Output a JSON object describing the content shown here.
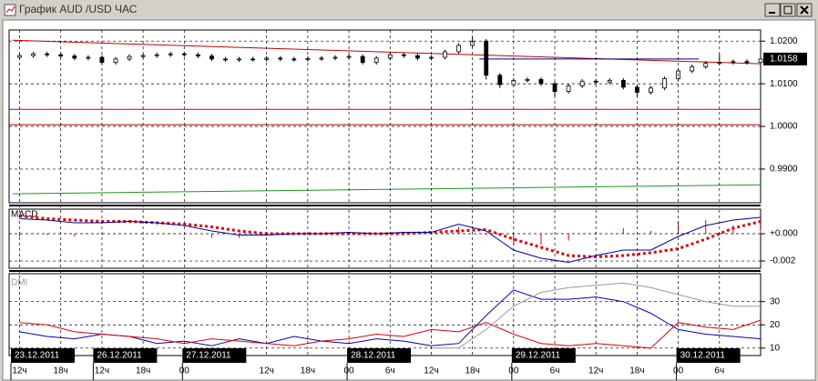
{
  "window": {
    "title": "График AUD /USD ЧАС"
  },
  "chart_data": [
    {
      "type": "candlestick",
      "xlim": [
        0,
        109
      ],
      "ylim": [
        0.9821,
        1.0226
      ],
      "yticks": [
        {
          "value": 1.02,
          "label": "1.0200"
        },
        {
          "value": 1.01,
          "label": "1.0100"
        },
        {
          "value": 1,
          "label": "1.0000"
        },
        {
          "value": 0.99,
          "label": "0.9900"
        }
      ],
      "grid": true,
      "last_value": 1.0158,
      "x": [
        1,
        3,
        5,
        7,
        9,
        11,
        13,
        15,
        17,
        19,
        21,
        23,
        25,
        27,
        29,
        31,
        33,
        35,
        37,
        39,
        41,
        43,
        45,
        47,
        49,
        51,
        53,
        55,
        57,
        59,
        61,
        63,
        65,
        67,
        69,
        71,
        73,
        75,
        77,
        79,
        81,
        83,
        85,
        87,
        89,
        91,
        93,
        95,
        97,
        99,
        101,
        103,
        105,
        107,
        109
      ],
      "open": [
        1.0162,
        1.0166,
        1.017,
        1.0168,
        1.0165,
        1.016,
        1.0162,
        1.015,
        1.0158,
        1.0164,
        1.0166,
        1.0168,
        1.017,
        1.0168,
        1.0165,
        1.0158,
        1.0156,
        1.0158,
        1.0157,
        1.016,
        1.0158,
        1.0157,
        1.0159,
        1.016,
        1.0162,
        1.0164,
        1.015,
        1.016,
        1.0168,
        1.0166,
        1.016,
        1.0162,
        1.0175,
        1.019,
        1.02,
        1.012,
        1.0098,
        1.0108,
        1.011,
        1.01,
        1.0082,
        1.0095,
        1.0106,
        1.0104,
        1.0108,
        1.0092,
        1.008,
        1.009,
        1.0112,
        1.013,
        1.014,
        1.0148,
        1.015,
        1.0152,
        1.015
      ],
      "high": [
        1.0171,
        1.0175,
        1.0175,
        1.0173,
        1.017,
        1.0167,
        1.0167,
        1.0163,
        1.0169,
        1.0171,
        1.0173,
        1.0175,
        1.0175,
        1.0173,
        1.017,
        1.0163,
        1.0163,
        1.0163,
        1.0165,
        1.0165,
        1.0163,
        1.0164,
        1.0165,
        1.0167,
        1.0169,
        1.0169,
        1.0165,
        1.0173,
        1.0173,
        1.0171,
        1.0167,
        1.018,
        1.0195,
        1.021,
        1.0205,
        1.0125,
        1.0113,
        1.0115,
        1.0115,
        1.0105,
        1.01,
        1.0111,
        1.0111,
        1.0113,
        1.0113,
        1.0097,
        1.0095,
        1.0117,
        1.0135,
        1.0145,
        1.0153,
        1.017,
        1.0157,
        1.0157,
        1.0163
      ],
      "low": [
        1.0157,
        1.0161,
        1.0163,
        1.016,
        1.0155,
        1.0155,
        1.0145,
        1.0145,
        1.0153,
        1.0159,
        1.0161,
        1.0163,
        1.0163,
        1.016,
        1.0153,
        1.0151,
        1.0151,
        1.0152,
        1.0152,
        1.0153,
        1.0152,
        1.0152,
        1.0154,
        1.0155,
        1.0157,
        1.0145,
        1.0145,
        1.0155,
        1.0161,
        1.0155,
        1.0155,
        1.0157,
        1.017,
        1.0185,
        1.011,
        1.009,
        1.0093,
        1.0103,
        1.0095,
        1.007,
        1.0077,
        1.009,
        1.0099,
        1.0099,
        1.0087,
        1.007,
        1.0075,
        1.0085,
        1.0107,
        1.0125,
        1.0135,
        1.0143,
        1.0145,
        1.0145,
        1.0145
      ],
      "close": [
        1.0166,
        1.017,
        1.0168,
        1.0165,
        1.016,
        1.0162,
        1.015,
        1.0158,
        1.0164,
        1.0166,
        1.0168,
        1.017,
        1.0168,
        1.0165,
        1.0158,
        1.0156,
        1.0158,
        1.0157,
        1.016,
        1.0158,
        1.0157,
        1.0159,
        1.016,
        1.0162,
        1.0164,
        1.015,
        1.016,
        1.0168,
        1.0166,
        1.016,
        1.0162,
        1.0175,
        1.019,
        1.02,
        1.012,
        1.0098,
        1.0108,
        1.011,
        1.01,
        1.0082,
        1.0095,
        1.0106,
        1.0104,
        1.0108,
        1.0092,
        1.008,
        1.009,
        1.0112,
        1.013,
        1.014,
        1.0148,
        1.015,
        1.0152,
        1.015,
        1.0158
      ],
      "levels": [
        {
          "value": 1.004,
          "color": "#c00000"
        },
        {
          "value": 1.0004,
          "color": "#c00000"
        }
      ],
      "trendlines": [
        {
          "x": [
            0,
            109
          ],
          "values": [
            1.0202,
            1.0147
          ],
          "color": "#c00000"
        },
        {
          "x": [
            0,
            109
          ],
          "values": [
            0.9842,
            0.9863
          ],
          "color": "#1a9a1a"
        },
        {
          "x": [
            68,
            100
          ],
          "values": [
            1.0158,
            1.0158
          ],
          "color": "#000080"
        }
      ]
    },
    {
      "type": "line",
      "title": "MACD",
      "xlim": [
        0,
        109
      ],
      "ylim": [
        -0.00253,
        0.0018
      ],
      "yticks": [
        {
          "value": 0,
          "label": "+0.000"
        },
        {
          "value": -0.002,
          "label": "-0.002"
        }
      ],
      "grid": true,
      "x": [
        1,
        5,
        9,
        13,
        17,
        21,
        25,
        29,
        33,
        37,
        41,
        45,
        49,
        53,
        57,
        61,
        65,
        69,
        73,
        77,
        81,
        85,
        89,
        93,
        97,
        101,
        105,
        109
      ],
      "series": [
        {
          "style": "bars",
          "color": "#e00000",
          "values": [
            -0.0002,
            -0.0001,
            -0.0002,
            -0.0001,
            0,
            0,
            -0.0001,
            -0.0003,
            -0.0003,
            -0.0001,
            0,
            0,
            0.0001,
            0,
            0.0001,
            0,
            0.0005,
            -0.0001,
            -0.0008,
            -0.0008,
            -0.0005,
            0.0001,
            0.0004,
            0.0002,
            0.0009,
            0.001,
            0.0006,
            0.0003
          ]
        },
        {
          "style": "dotted",
          "color": "#e00000",
          "values": [
            0.0013,
            0.0011,
            0.001,
            0.0009,
            0.0009,
            0.0008,
            0.0007,
            0.0005,
            0.0002,
            0,
            0,
            0,
            0,
            0,
            0,
            0.0001,
            0.0002,
            0.0003,
            -0.0004,
            -0.001,
            -0.0016,
            -0.0017,
            -0.0016,
            -0.0014,
            -0.0011,
            -0.0004,
            0.0004,
            0.0009
          ]
        },
        {
          "style": "line",
          "color": "#0000a0",
          "values": [
            0.0011,
            0.001,
            0.0008,
            0.0008,
            0.0009,
            0.0008,
            0.0006,
            0.0002,
            -0.0001,
            -0.0001,
            0,
            0,
            0.0001,
            0,
            0.0001,
            0.0001,
            0.0007,
            0.0002,
            -0.0012,
            -0.0018,
            -0.0021,
            -0.0016,
            -0.0012,
            -0.0012,
            -0.0002,
            0.0006,
            0.001,
            0.0012
          ]
        }
      ]
    },
    {
      "type": "line",
      "title": "DMI",
      "xlim": [
        0,
        109
      ],
      "ylim": [
        6.8,
        42
      ],
      "yticks": [
        30,
        20,
        10
      ],
      "grid": true,
      "x": [
        1,
        5,
        9,
        13,
        17,
        21,
        25,
        29,
        33,
        37,
        41,
        45,
        49,
        53,
        57,
        61,
        65,
        69,
        73,
        77,
        81,
        85,
        89,
        93,
        97,
        101,
        105,
        109
      ],
      "series": [
        {
          "style": "line",
          "color": "#0000c0",
          "values": [
            17,
            15,
            14,
            16,
            15,
            12,
            13,
            11,
            14,
            12,
            15,
            13,
            12,
            14,
            13,
            11,
            12,
            24,
            35,
            31,
            31,
            32,
            30,
            25,
            18,
            16,
            15,
            14
          ]
        },
        {
          "style": "line",
          "color": "#e00000",
          "values": [
            21,
            20,
            17,
            16,
            15,
            14,
            12,
            14,
            13,
            12,
            11,
            13,
            14,
            16,
            15,
            18,
            17,
            21,
            16,
            12,
            11,
            12,
            11,
            10,
            21,
            19,
            18,
            22
          ]
        },
        {
          "style": "line",
          "color": "#999999",
          "values": [
            null,
            null,
            null,
            null,
            null,
            null,
            null,
            null,
            null,
            null,
            null,
            null,
            null,
            null,
            null,
            10,
            10,
            18,
            28,
            34,
            36,
            37,
            38,
            36,
            33,
            30,
            28,
            28
          ]
        }
      ],
      "xticks": [
        {
          "value": 1,
          "label": "12ч"
        },
        {
          "value": 7,
          "label": "18ч"
        },
        {
          "value": 13,
          "label": "12ч"
        },
        {
          "value": 19,
          "label": "18ч"
        },
        {
          "value": 25,
          "label": "00"
        },
        {
          "value": 37,
          "label": "12ч"
        },
        {
          "value": 43,
          "label": "18ч"
        },
        {
          "value": 49,
          "label": "00"
        },
        {
          "value": 55,
          "label": "6ч"
        },
        {
          "value": 61,
          "label": "12ч"
        },
        {
          "value": 67,
          "label": "18ч"
        },
        {
          "value": 73,
          "label": "00"
        },
        {
          "value": 79,
          "label": "6ч"
        },
        {
          "value": 85,
          "label": "12ч"
        },
        {
          "value": 91,
          "label": "18ч"
        },
        {
          "value": 97,
          "label": "00"
        },
        {
          "value": 103,
          "label": "6ч"
        }
      ],
      "date_labels": [
        {
          "value": 0,
          "label": "23.12.2011"
        },
        {
          "value": 12,
          "label": "26.12.2011"
        },
        {
          "value": 25,
          "label": "27.12.2011"
        },
        {
          "value": 49,
          "label": "28.12.2011"
        },
        {
          "value": 73,
          "label": "29.12.2011"
        },
        {
          "value": 97,
          "label": "30.12.2011"
        }
      ]
    }
  ]
}
